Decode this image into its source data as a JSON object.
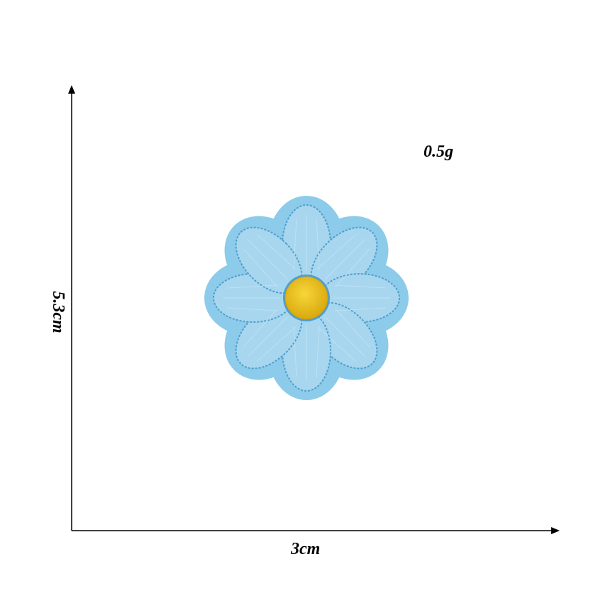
{
  "product": {
    "weight_label": "0.5g",
    "width_label": "3cm",
    "height_label": "5.3cm",
    "subject": "flower-embroidered-patch"
  },
  "colors": {
    "background": "#ffffff",
    "axis": "#000000",
    "patch_border": "#8ccbea",
    "petal": "#a8d6ef",
    "petal_stitch": "#4f9fcb",
    "center": "#f1c518",
    "center_dark": "#d9a90e"
  }
}
